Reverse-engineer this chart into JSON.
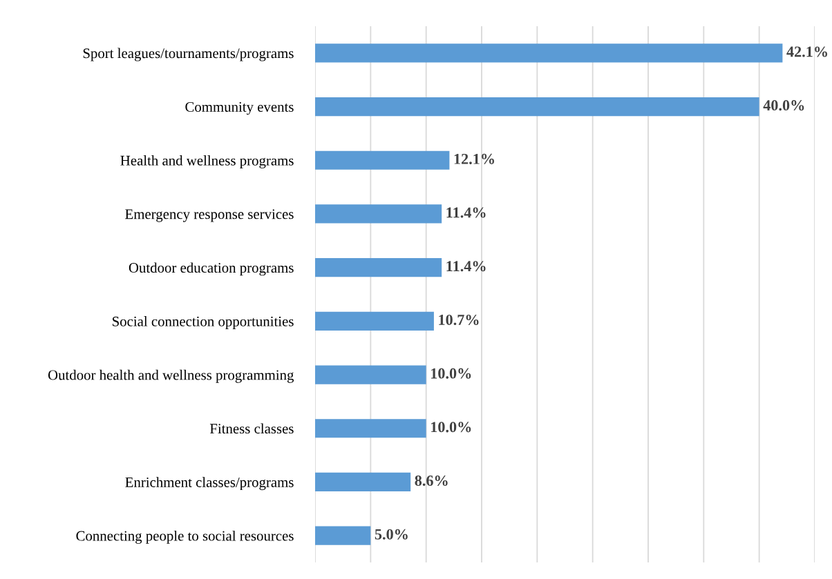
{
  "chart_data": {
    "type": "bar",
    "orientation": "horizontal",
    "categories": [
      "Sport leagues/tournaments/programs",
      "Community events",
      "Health and wellness programs",
      "Emergency response services",
      "Outdoor education programs",
      "Social connection opportunities",
      "Outdoor health and wellness programming",
      "Fitness classes",
      "Enrichment classes/programs",
      "Connecting people to social resources"
    ],
    "values": [
      42.1,
      40.0,
      12.1,
      11.4,
      11.4,
      10.7,
      10.0,
      10.0,
      8.6,
      5.0
    ],
    "value_labels": [
      "42.1%",
      "40.0%",
      "12.1%",
      "11.4%",
      "11.4%",
      "10.7%",
      "10.0%",
      "10.0%",
      "8.6%",
      "5.0%"
    ],
    "color": "#5b9bd5",
    "xlim": [
      0,
      45
    ],
    "xticks": [
      {
        "value": 0,
        "label": null
      },
      {
        "value": 5,
        "label": null
      },
      {
        "value": 10,
        "label": null
      },
      {
        "value": 15,
        "label": null
      },
      {
        "value": 20,
        "label": null
      },
      {
        "value": 25,
        "label": null
      },
      {
        "value": 30,
        "label": null
      },
      {
        "value": 35,
        "label": null
      },
      {
        "value": 40,
        "label": null
      },
      {
        "value": 45,
        "label": null
      }
    ],
    "grid": "x",
    "tick_labels": "y",
    "legend": false
  }
}
